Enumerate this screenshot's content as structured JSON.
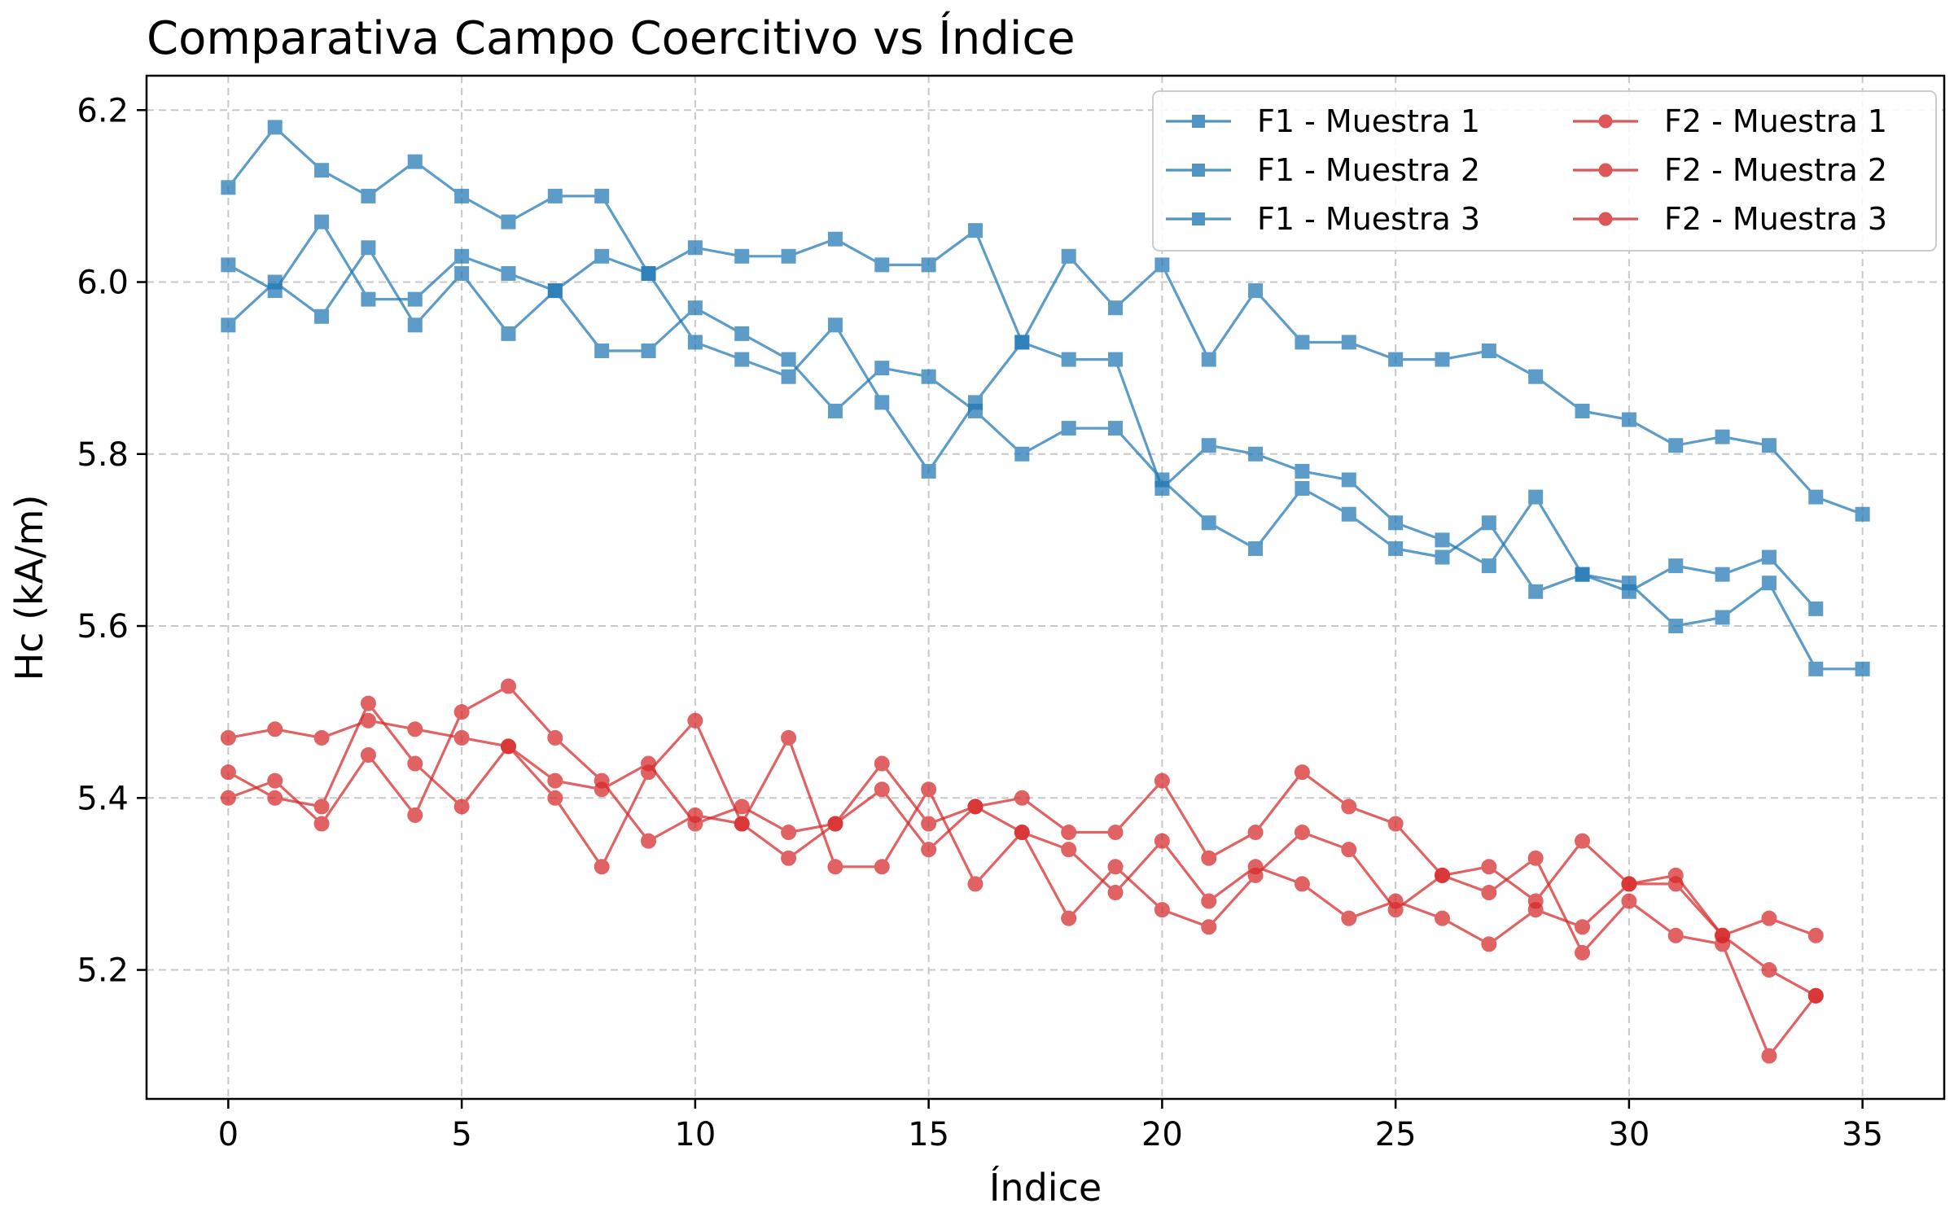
{
  "chart_data": {
    "type": "line",
    "title": "Comparativa Campo Coercitivo vs Índice",
    "xlabel": "Índice",
    "ylabel": "Hc (kA/m)",
    "xlim": [
      -1.75,
      36.75
    ],
    "ylim": [
      5.05,
      6.24
    ],
    "xticks": [
      0,
      5,
      10,
      15,
      20,
      25,
      30,
      35
    ],
    "yticks": [
      5.2,
      5.4,
      5.6,
      5.8,
      6.0,
      6.2
    ],
    "ytick_labels": [
      "5.2",
      "5.4",
      "5.6",
      "5.8",
      "6.0",
      "6.2"
    ],
    "grid": true,
    "legend_position": "top-right",
    "legend_columns": 2,
    "colors": {
      "F1": "#1f77b4",
      "F2": "#d62728"
    },
    "series": [
      {
        "name": "F1 - Muestra 1",
        "group": "F1",
        "marker": "square",
        "x": [
          0,
          1,
          2,
          3,
          4,
          5,
          6,
          7,
          8,
          9,
          10,
          11,
          12,
          13,
          14,
          15,
          16,
          17,
          18,
          19,
          20,
          21,
          22,
          23,
          24,
          25,
          26,
          27,
          28,
          29,
          30,
          31,
          32,
          33,
          34,
          35
        ],
        "values": [
          6.11,
          6.18,
          6.13,
          6.1,
          6.14,
          6.1,
          6.07,
          6.1,
          6.1,
          6.01,
          6.04,
          6.03,
          6.03,
          6.05,
          6.02,
          6.02,
          6.06,
          5.93,
          6.03,
          5.97,
          6.02,
          5.91,
          5.99,
          5.93,
          5.93,
          5.91,
          5.91,
          5.92,
          5.89,
          5.85,
          5.84,
          5.81,
          5.82,
          5.81,
          5.75,
          5.73
        ]
      },
      {
        "name": "F1 - Muestra 2",
        "group": "F1",
        "marker": "square",
        "x": [
          0,
          1,
          2,
          3,
          4,
          5,
          6,
          7,
          8,
          9,
          10,
          11,
          12,
          13,
          14,
          15,
          16,
          17,
          18,
          19,
          20,
          21,
          22,
          23,
          24,
          25,
          26,
          27,
          28,
          29,
          30,
          31,
          32,
          33,
          34
        ],
        "values": [
          6.02,
          5.99,
          6.07,
          5.98,
          5.98,
          6.03,
          6.01,
          5.99,
          6.03,
          6.01,
          5.93,
          5.91,
          5.89,
          5.95,
          5.86,
          5.78,
          5.86,
          5.93,
          5.91,
          5.91,
          5.76,
          5.81,
          5.8,
          5.78,
          5.77,
          5.72,
          5.7,
          5.67,
          5.75,
          5.66,
          5.64,
          5.67,
          5.66,
          5.68,
          5.62
        ]
      },
      {
        "name": "F1 - Muestra 3",
        "group": "F1",
        "marker": "square",
        "x": [
          0,
          1,
          2,
          3,
          4,
          5,
          6,
          7,
          8,
          9,
          10,
          11,
          12,
          13,
          14,
          15,
          16,
          17,
          18,
          19,
          20,
          21,
          22,
          23,
          24,
          25,
          26,
          27,
          28,
          29,
          30,
          31,
          32,
          33,
          34,
          35
        ],
        "values": [
          5.95,
          6.0,
          5.96,
          6.04,
          5.95,
          6.01,
          5.94,
          5.99,
          5.92,
          5.92,
          5.97,
          5.94,
          5.91,
          5.85,
          5.9,
          5.89,
          5.85,
          5.8,
          5.83,
          5.83,
          5.77,
          5.72,
          5.69,
          5.76,
          5.73,
          5.69,
          5.68,
          5.72,
          5.64,
          5.66,
          5.65,
          5.6,
          5.61,
          5.65,
          5.55,
          5.55
        ]
      },
      {
        "name": "F2 - Muestra 1",
        "group": "F2",
        "marker": "circle",
        "x": [
          0,
          1,
          2,
          3,
          4,
          5,
          6,
          7,
          8,
          9,
          10,
          11,
          12,
          13,
          14,
          15,
          16,
          17,
          18,
          19,
          20,
          21,
          22,
          23,
          24,
          25,
          26,
          27,
          28,
          29,
          30,
          31,
          32,
          33,
          34
        ],
        "values": [
          5.47,
          5.48,
          5.47,
          5.49,
          5.48,
          5.47,
          5.46,
          5.42,
          5.41,
          5.44,
          5.37,
          5.39,
          5.36,
          5.37,
          5.44,
          5.37,
          5.39,
          5.4,
          5.36,
          5.36,
          5.42,
          5.33,
          5.36,
          5.43,
          5.39,
          5.37,
          5.31,
          5.32,
          5.28,
          5.35,
          5.3,
          5.3,
          5.24,
          5.26,
          5.24
        ]
      },
      {
        "name": "F2 - Muestra 2",
        "group": "F2",
        "marker": "circle",
        "x": [
          0,
          1,
          2,
          3,
          4,
          5,
          6,
          7,
          8,
          9,
          10,
          11,
          12,
          13,
          14,
          15,
          16,
          17,
          18,
          19,
          20,
          21,
          22,
          23,
          24,
          25,
          26,
          27,
          28,
          29,
          30,
          31,
          32,
          33,
          34
        ],
        "values": [
          5.43,
          5.4,
          5.39,
          5.51,
          5.44,
          5.39,
          5.46,
          5.4,
          5.32,
          5.43,
          5.49,
          5.37,
          5.47,
          5.32,
          5.32,
          5.41,
          5.3,
          5.36,
          5.26,
          5.32,
          5.27,
          5.25,
          5.31,
          5.36,
          5.34,
          5.27,
          5.31,
          5.29,
          5.33,
          5.22,
          5.28,
          5.24,
          5.23,
          5.1,
          5.17
        ]
      },
      {
        "name": "F2 - Muestra 3",
        "group": "F2",
        "marker": "circle",
        "x": [
          0,
          1,
          2,
          3,
          4,
          5,
          6,
          7,
          8,
          9,
          10,
          11,
          12,
          13,
          14,
          15,
          16,
          17,
          18,
          19,
          20,
          21,
          22,
          23,
          24,
          25,
          26,
          27,
          28,
          29,
          30,
          31,
          32,
          33,
          34
        ],
        "values": [
          5.4,
          5.42,
          5.37,
          5.45,
          5.38,
          5.5,
          5.53,
          5.47,
          5.42,
          5.35,
          5.38,
          5.37,
          5.33,
          5.37,
          5.41,
          5.34,
          5.39,
          5.36,
          5.34,
          5.29,
          5.35,
          5.28,
          5.32,
          5.3,
          5.26,
          5.28,
          5.26,
          5.23,
          5.27,
          5.25,
          5.3,
          5.31,
          5.24,
          5.2,
          5.17
        ]
      }
    ]
  }
}
